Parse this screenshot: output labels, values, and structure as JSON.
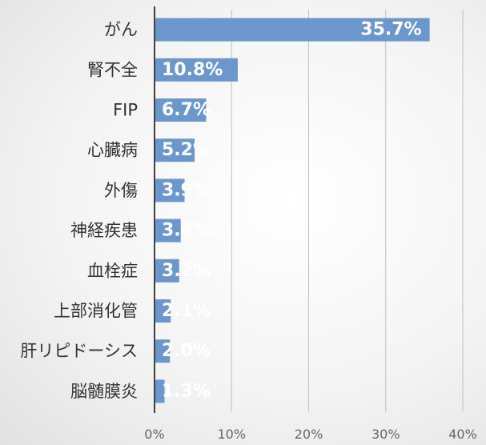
{
  "chart_data": {
    "type": "bar",
    "orientation": "horizontal",
    "categories": [
      "がん",
      "腎不全",
      "FIP",
      "心臓病",
      "外傷",
      "神経疾患",
      "血栓症",
      "上部消化管",
      "肝リピドーシス",
      "脳髄膜炎"
    ],
    "values": [
      35.7,
      10.8,
      6.7,
      5.2,
      3.9,
      3.4,
      3.2,
      2.1,
      2.0,
      1.3
    ],
    "data_labels": [
      "35.7%",
      "10.8%",
      "6.7%",
      "5.2%",
      "3.9%",
      "3.4%",
      "3.2%",
      "2.1%",
      "2.0%",
      "1.3%"
    ],
    "x_ticks": [
      0,
      10,
      20,
      30,
      40
    ],
    "x_tick_labels": [
      "0%",
      "10%",
      "20%",
      "30%",
      "40%"
    ],
    "xlim": [
      0,
      40
    ],
    "grid": "vertical",
    "legend": "none",
    "title": "",
    "xlabel": "",
    "ylabel": "",
    "colors": {
      "bar": "#6b97cc",
      "grid": "#bfbfbf",
      "axis": "#404040"
    }
  }
}
